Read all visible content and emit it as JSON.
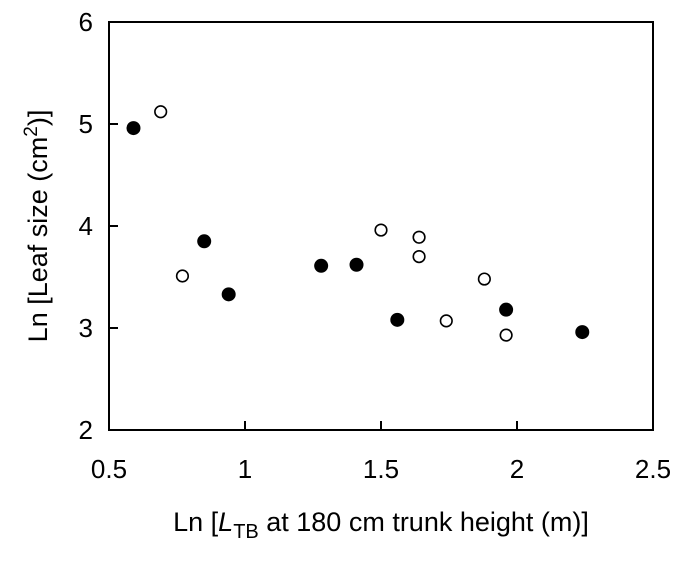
{
  "chart_data": {
    "type": "scatter",
    "title": "",
    "xlabel": {
      "prefix": "Ln [",
      "var": "L",
      "sub": "TB",
      "suffix": " at 180 cm trunk height (m)]"
    },
    "ylabel": {
      "prefix": "Ln [Leaf size (cm",
      "sup": "2",
      "suffix": ")]"
    },
    "xlim": [
      0.5,
      2.5
    ],
    "ylim": [
      2,
      6
    ],
    "x_ticks": [
      0.5,
      1,
      1.5,
      2,
      2.5
    ],
    "x_tick_labels": [
      "0.5",
      "1",
      "1.5",
      "2",
      "2.5"
    ],
    "y_ticks": [
      2,
      3,
      4,
      5,
      6
    ],
    "y_tick_labels": [
      "2",
      "3",
      "4",
      "5",
      "6"
    ],
    "grid": false,
    "legend": "none",
    "series": [
      {
        "marker": "filled-circle",
        "color": "#000000",
        "points": [
          {
            "x": 0.59,
            "y": 4.96
          },
          {
            "x": 0.85,
            "y": 3.85
          },
          {
            "x": 0.94,
            "y": 3.33
          },
          {
            "x": 1.28,
            "y": 3.61
          },
          {
            "x": 1.41,
            "y": 3.62
          },
          {
            "x": 1.56,
            "y": 3.08
          },
          {
            "x": 1.96,
            "y": 3.18
          },
          {
            "x": 2.24,
            "y": 2.96
          }
        ]
      },
      {
        "marker": "open-circle",
        "color": "#000000",
        "points": [
          {
            "x": 0.69,
            "y": 5.12
          },
          {
            "x": 0.77,
            "y": 3.51
          },
          {
            "x": 1.5,
            "y": 3.96
          },
          {
            "x": 1.64,
            "y": 3.89
          },
          {
            "x": 1.64,
            "y": 3.7
          },
          {
            "x": 1.74,
            "y": 3.07
          },
          {
            "x": 1.88,
            "y": 3.48
          },
          {
            "x": 1.96,
            "y": 2.93
          }
        ]
      }
    ]
  }
}
